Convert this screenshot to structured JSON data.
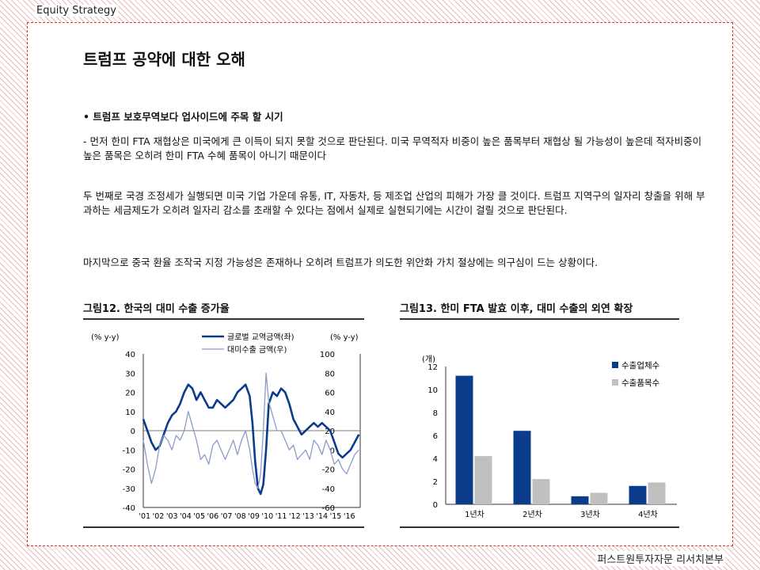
{
  "header": {
    "label": "Equity Strategy"
  },
  "footer": {
    "label": "퍼스트원투자자문 리서치본부"
  },
  "title": "트럼프 공약에 대한 오해",
  "bullet": "•  트럼프 보호무역보다 업사이드에 주목 할 시기",
  "paragraphs": [
    "- 먼저 한미 FTA 재협상은 미국에게 큰 이득이 되지 못할 것으로 판단된다. 미국 무역적자 비중이 높은 품목부터 재협상 될 가능성이 높은데 적자비중이 높은 품목은 오히려 한미 FTA 수혜 품목이 아니기 때문이다",
    "두 번째로 국경 조정세가 실행되면 미국 기업 가운데 유통, IT, 자동차, 등 제조업 산업의 피해가 가장 클 것이다. 트럼프 지역구의 일자리 창출을 위해 부과하는 세금제도가 오히려 일자리 감소를 초래할 수 있다는 점에서 실제로 실현되기에는 시간이 걸릴 것으로 판단된다.",
    "마지막으로 중국 환율 조작국 지정 가능성은 존재하나 오히려 트럼프가 의도한 위안화 가치 절상에는 의구심이 드는 상황이다."
  ],
  "chart_data": [
    {
      "type": "line",
      "title": "그림12. 한국의 대미 수출 증가율",
      "ylabel_left": "(% y-y)",
      "ylabel_right": "(% y-y)",
      "ylim_left": [
        -40,
        40
      ],
      "ylim_right": [
        -60,
        100
      ],
      "yticks_left": [
        "40",
        "30",
        "20",
        "10",
        "0",
        "-10",
        "-20",
        "-30",
        "-40"
      ],
      "yticks_right": [
        "100",
        "80",
        "60",
        "40",
        "20",
        "0",
        "-20",
        "-40",
        "-60"
      ],
      "x_labels": [
        "'01",
        "'02",
        "'03",
        "'04",
        "'05",
        "'06",
        "'07",
        "'08",
        "'09",
        "'10",
        "'11",
        "'12",
        "'13",
        "'14",
        "'15",
        "'16"
      ],
      "legend_placement": "top-center",
      "series": [
        {
          "name": "글로벌 교역금액(좌)",
          "axis": "left",
          "color": "#0b3c8c",
          "x": [
            2001.0,
            2001.3,
            2001.6,
            2001.9,
            2002.2,
            2002.5,
            2002.8,
            2003.1,
            2003.4,
            2003.7,
            2004.0,
            2004.3,
            2004.6,
            2004.9,
            2005.2,
            2005.5,
            2005.8,
            2006.1,
            2006.4,
            2006.7,
            2007.0,
            2007.3,
            2007.6,
            2007.9,
            2008.2,
            2008.5,
            2008.8,
            2009.0,
            2009.2,
            2009.4,
            2009.6,
            2009.8,
            2010.0,
            2010.2,
            2010.5,
            2010.8,
            2011.1,
            2011.4,
            2011.7,
            2012.0,
            2012.3,
            2012.6,
            2012.9,
            2013.2,
            2013.5,
            2013.8,
            2014.1,
            2014.4,
            2014.7,
            2015.0,
            2015.3,
            2015.6,
            2015.9,
            2016.2,
            2016.5,
            2016.8
          ],
          "values": [
            6,
            0,
            -6,
            -10,
            -8,
            -2,
            4,
            8,
            10,
            14,
            20,
            24,
            22,
            16,
            20,
            16,
            12,
            12,
            16,
            14,
            12,
            14,
            16,
            20,
            22,
            24,
            18,
            4,
            -16,
            -30,
            -33,
            -28,
            -10,
            14,
            20,
            18,
            22,
            20,
            14,
            6,
            2,
            -2,
            0,
            2,
            4,
            2,
            4,
            2,
            0,
            -6,
            -12,
            -14,
            -12,
            -10,
            -6,
            -2
          ]
        },
        {
          "name": "대미수출 금액(우)",
          "axis": "right",
          "color": "#8a9cc9",
          "x": [
            2001.0,
            2001.3,
            2001.6,
            2001.9,
            2002.2,
            2002.5,
            2002.8,
            2003.1,
            2003.4,
            2003.7,
            2004.0,
            2004.3,
            2004.6,
            2004.9,
            2005.2,
            2005.5,
            2005.8,
            2006.1,
            2006.4,
            2006.7,
            2007.0,
            2007.3,
            2007.6,
            2007.9,
            2008.2,
            2008.5,
            2008.8,
            2009.0,
            2009.2,
            2009.4,
            2009.6,
            2009.8,
            2010.0,
            2010.2,
            2010.5,
            2010.8,
            2011.1,
            2011.4,
            2011.7,
            2012.0,
            2012.3,
            2012.6,
            2012.9,
            2013.2,
            2013.5,
            2013.8,
            2014.1,
            2014.4,
            2014.7,
            2015.0,
            2015.3,
            2015.6,
            2015.9,
            2016.2,
            2016.5,
            2016.8
          ],
          "values": [
            10,
            -15,
            -35,
            -20,
            5,
            15,
            10,
            0,
            15,
            10,
            20,
            40,
            25,
            10,
            -10,
            -5,
            -15,
            5,
            10,
            0,
            -10,
            0,
            10,
            -5,
            10,
            20,
            0,
            -20,
            -35,
            -40,
            -25,
            20,
            80,
            50,
            35,
            20,
            20,
            10,
            0,
            5,
            -10,
            -5,
            0,
            -10,
            10,
            5,
            -5,
            10,
            0,
            -15,
            -10,
            -20,
            -25,
            -15,
            -5,
            0
          ]
        }
      ]
    },
    {
      "type": "bar",
      "title": "그림13. 한미 FTA 발효 이후, 대미 수출의 외연 확장",
      "ylabel": "(개)",
      "ylim": [
        0,
        12
      ],
      "yticks": [
        "12",
        "10",
        "8",
        "6",
        "4",
        "2",
        "0"
      ],
      "categories": [
        "1년차",
        "2년차",
        "3년차",
        "4년차"
      ],
      "legend_placement": "top-right",
      "series": [
        {
          "name": "수출업체수",
          "color": "#0b3c8c",
          "values": [
            11.2,
            6.4,
            0.7,
            1.6
          ]
        },
        {
          "name": "수출품목수",
          "color": "#c0c0c0",
          "values": [
            4.2,
            2.2,
            1.0,
            1.9
          ]
        }
      ]
    }
  ]
}
